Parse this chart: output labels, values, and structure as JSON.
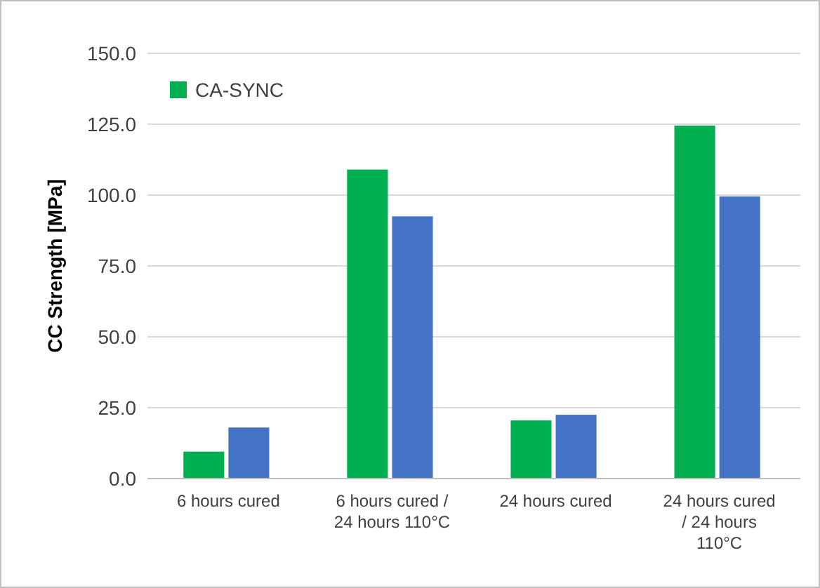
{
  "chart_data": {
    "type": "bar",
    "ylabel": "CC Strength [MPa]",
    "categories": [
      "6 hours cured",
      "6 hours cured / 24 hours 110°C",
      "24 hours cured",
      "24 hours cured / 24 hours 110°C"
    ],
    "series": [
      {
        "name": "CA-SYNC",
        "color": "#00b050",
        "values": [
          9.5,
          109,
          20.5,
          124.5
        ]
      },
      {
        "color": "#4472c4",
        "values": [
          18,
          92.5,
          22.5,
          99.5
        ]
      }
    ],
    "ylim": [
      0,
      150
    ],
    "yticks": [
      {
        "value": 0,
        "label": "0.0"
      },
      {
        "value": 25,
        "label": "25.0"
      },
      {
        "value": 50,
        "label": "50.0"
      },
      {
        "value": 75,
        "label": "75.0"
      },
      {
        "value": 100,
        "label": "100.0"
      },
      {
        "value": 125,
        "label": "125.0"
      },
      {
        "value": 150,
        "label": "150.0"
      }
    ],
    "grid": "y",
    "legend": "top left"
  }
}
